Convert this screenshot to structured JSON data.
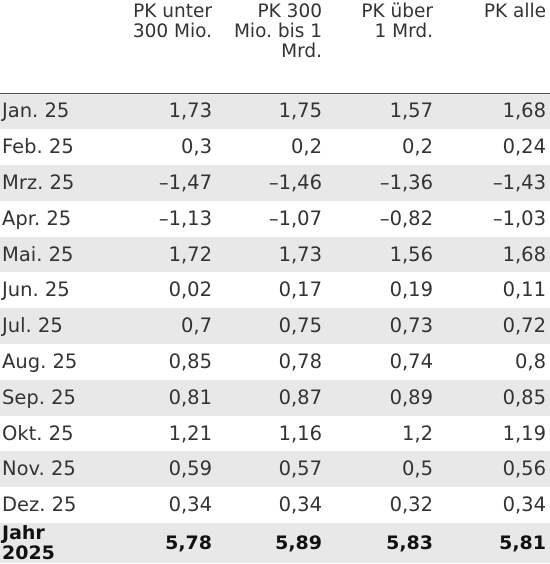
{
  "header": {
    "col0": "",
    "col1_line1": "PK unter",
    "col1_line2": "300 Mio.",
    "col2_line1": "PK 300",
    "col2_line2": "Mio. bis 1",
    "col2_line3": "Mrd.",
    "col3_line1": "PK über",
    "col3_line2": "1 Mrd.",
    "col4_line1": "PK alle"
  },
  "rows": [
    {
      "label": "Jan. 25",
      "v1": "1,73",
      "v2": "1,75",
      "v3": "1,57",
      "v4": "1,68"
    },
    {
      "label": "Feb. 25",
      "v1": "0,3",
      "v2": "0,2",
      "v3": "0,2",
      "v4": "0,24"
    },
    {
      "label": "Mrz. 25",
      "v1": "–1,47",
      "v2": "–1,46",
      "v3": "–1,36",
      "v4": "–1,43"
    },
    {
      "label": "Apr. 25",
      "v1": "–1,13",
      "v2": "–1,07",
      "v3": "–0,82",
      "v4": "–1,03"
    },
    {
      "label": "Mai. 25",
      "v1": "1,72",
      "v2": "1,73",
      "v3": "1,56",
      "v4": "1,68"
    },
    {
      "label": "Jun. 25",
      "v1": "0,02",
      "v2": "0,17",
      "v3": "0,19",
      "v4": "0,11"
    },
    {
      "label": "Jul. 25",
      "v1": "0,7",
      "v2": "0,75",
      "v3": "0,73",
      "v4": "0,72"
    },
    {
      "label": "Aug. 25",
      "v1": "0,85",
      "v2": "0,78",
      "v3": "0,74",
      "v4": "0,8"
    },
    {
      "label": "Sep. 25",
      "v1": "0,81",
      "v2": "0,87",
      "v3": "0,89",
      "v4": "0,85"
    },
    {
      "label": "Okt. 25",
      "v1": "1,21",
      "v2": "1,16",
      "v3": "1,2",
      "v4": "1,19"
    },
    {
      "label": "Nov. 25",
      "v1": "0,59",
      "v2": "0,57",
      "v3": "0,5",
      "v4": "0,56"
    },
    {
      "label": "Dez. 25",
      "v1": "0,34",
      "v2": "0,34",
      "v3": "0,32",
      "v4": "0,34"
    },
    {
      "label": "Jahr 2025",
      "v1": "5,78",
      "v2": "5,89",
      "v3": "5,83",
      "v4": "5,81"
    }
  ],
  "colors": {
    "row_shade": "#e8e8e8",
    "text": "#333333",
    "rule": "#555555"
  }
}
